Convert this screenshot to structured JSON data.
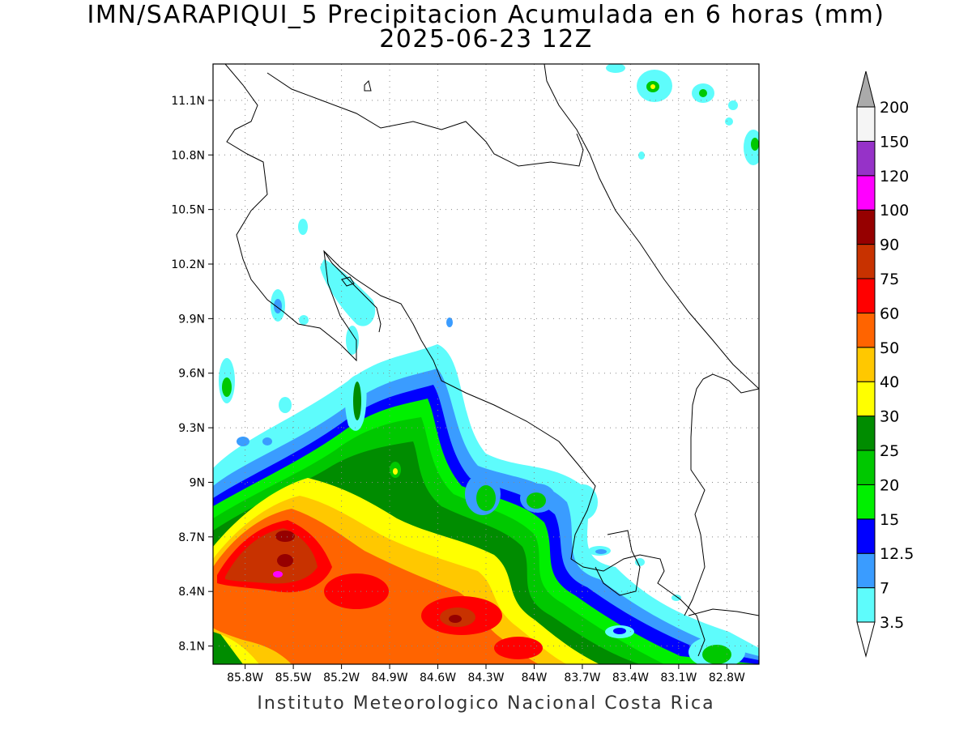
{
  "title": {
    "line1": "IMN/SARAPIQUI_5 Precipitacion Acumulada en 6 horas (mm)",
    "line2": "2025-06-23 12Z"
  },
  "footer": "Instituto Meteorologico Nacional Costa Rica",
  "map": {
    "lon_range": [
      -86.0,
      -82.6
    ],
    "lat_range": [
      8.0,
      11.3
    ],
    "lat_ticks": [
      "11.1N",
      "10.8N",
      "10.5N",
      "10.2N",
      "9.9N",
      "9.6N",
      "9.3N",
      "9N",
      "8.7N",
      "8.4N",
      "8.1N"
    ],
    "lat_tick_values": [
      11.1,
      10.8,
      10.5,
      10.2,
      9.9,
      9.6,
      9.3,
      9.0,
      8.7,
      8.4,
      8.1
    ],
    "lon_ticks": [
      "85.8W",
      "85.5W",
      "85.2W",
      "84.9W",
      "84.6W",
      "84.3W",
      "84W",
      "83.7W",
      "83.4W",
      "83.1W",
      "82.8W"
    ],
    "lon_tick_values": [
      -85.8,
      -85.5,
      -85.2,
      -84.9,
      -84.6,
      -84.3,
      -84.0,
      -83.7,
      -83.4,
      -83.1,
      -82.8
    ],
    "grid": "dotted"
  },
  "colorbar": {
    "labels": [
      "3.5",
      "7",
      "12.5",
      "15",
      "20",
      "25",
      "30",
      "40",
      "50",
      "60",
      "75",
      "90",
      "100",
      "120",
      "150",
      "200"
    ],
    "colors": [
      "#5efcfc",
      "#3a9cff",
      "#0000ff",
      "#00f000",
      "#00c800",
      "#008c00",
      "#ffff00",
      "#ffc800",
      "#ff6400",
      "#ff0000",
      "#c83200",
      "#960000",
      "#ff00ff",
      "#9632c8",
      "#f5f5f5"
    ],
    "over_color": "#aaaaaa",
    "under_color": "#ffffff"
  }
}
